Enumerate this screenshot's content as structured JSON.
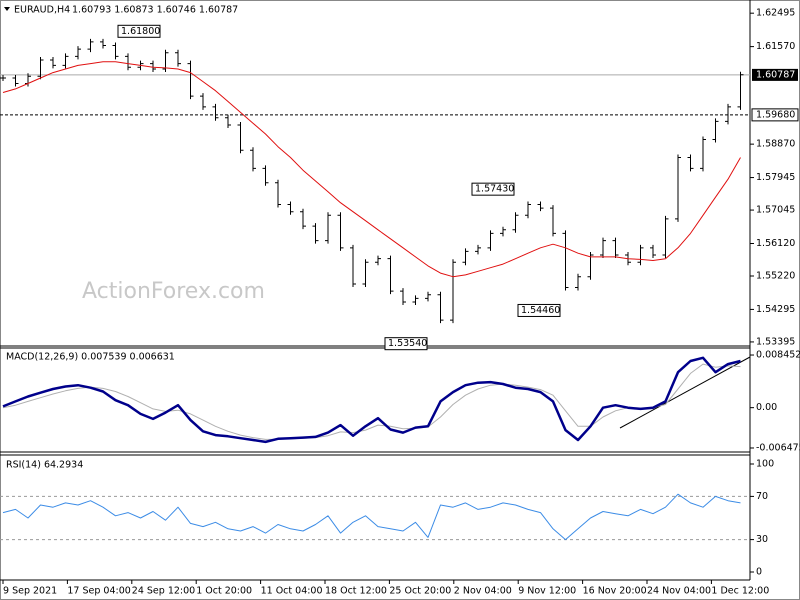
{
  "chart_data": [
    {
      "type": "ohlc-line",
      "symbol": "EURAUD,H4",
      "quote": "1.60793 1.60873 1.60746 1.60787",
      "watermark": "ActionForex.com",
      "x_labels": [
        "9 Sep 2021",
        "17 Sep 04:00",
        "24 Sep 12:00",
        "1 Oct 20:00",
        "11 Oct 04:00",
        "18 Oct 12:00",
        "25 Oct 20:00",
        "2 Nov 04:00",
        "9 Nov 12:00",
        "16 Nov 20:00",
        "24 Nov 04:00",
        "1 Dec 12:00"
      ],
      "ylim": [
        1.5331,
        1.6286
      ],
      "yticks": [
        1.62495,
        {
          "value": 1.6157,
          "label": "1.61570"
        },
        {
          "value": 1.5887,
          "label": "1.58870"
        },
        1.57945,
        1.57045,
        {
          "value": 1.5612,
          "label": "1.56120"
        },
        {
          "value": 1.5522,
          "label": "1.55220"
        },
        1.54295,
        1.53395
      ],
      "current_price": {
        "value": 1.60787,
        "label": "1.60787"
      },
      "level": {
        "value": 1.5968,
        "label": "1.59680"
      },
      "annotations": [
        {
          "value": 1.618,
          "label": "1.61800"
        },
        {
          "value": 1.5743,
          "label": "1.57430"
        },
        {
          "value": 1.5446,
          "label": "1.54460"
        },
        {
          "value": 1.5354,
          "label": "1.53540"
        }
      ],
      "series": [
        {
          "name": "Close",
          "color": "#000000",
          "values": [
            1.607,
            1.6055,
            1.6075,
            1.612,
            1.6105,
            1.613,
            1.615,
            1.617,
            1.616,
            1.613,
            1.61,
            1.611,
            1.6095,
            1.614,
            1.611,
            1.602,
            1.599,
            1.596,
            1.594,
            1.587,
            1.582,
            1.578,
            1.572,
            1.57,
            1.566,
            1.562,
            1.569,
            1.56,
            1.55,
            1.556,
            1.557,
            1.548,
            1.545,
            1.546,
            1.547,
            1.54,
            1.556,
            1.559,
            1.56,
            1.564,
            1.565,
            1.569,
            1.572,
            1.571,
            1.564,
            1.549,
            1.552,
            1.558,
            1.562,
            1.558,
            1.556,
            1.56,
            1.558,
            1.568,
            1.585,
            1.582,
            1.59,
            1.595,
            1.599,
            1.6079
          ]
        },
        {
          "name": "MA",
          "color": "#e01010",
          "values": [
            1.603,
            1.604,
            1.6055,
            1.607,
            1.6085,
            1.6095,
            1.6105,
            1.611,
            1.6115,
            1.6115,
            1.611,
            1.6105,
            1.61,
            1.6098,
            1.6095,
            1.6085,
            1.606,
            1.6035,
            1.6005,
            1.5975,
            1.5945,
            1.5915,
            1.588,
            1.585,
            1.5815,
            1.5785,
            1.5755,
            1.5725,
            1.57,
            1.5675,
            1.565,
            1.5625,
            1.56,
            1.5575,
            1.555,
            1.553,
            1.552,
            1.5525,
            1.5535,
            1.5545,
            1.5555,
            1.557,
            1.5585,
            1.56,
            1.561,
            1.56,
            1.5585,
            1.5575,
            1.5575,
            1.5575,
            1.557,
            1.5568,
            1.5565,
            1.557,
            1.56,
            1.564,
            1.569,
            1.574,
            1.579,
            1.585
          ]
        }
      ]
    },
    {
      "type": "macd",
      "title": "MACD(12,26,9) 0.007539 0.006631",
      "ylim": [
        -0.00712,
        0.00958
      ],
      "yticks": [
        0.008452,
        {
          "value": 0,
          "label": "0.00"
        },
        -0.006475
      ],
      "series": [
        {
          "name": "MACD",
          "color": "#00008b",
          "values": [
            0.0002,
            0.001,
            0.0018,
            0.0024,
            0.003,
            0.0034,
            0.0036,
            0.0032,
            0.0026,
            0.0012,
            0.0004,
            -0.001,
            -0.0018,
            -0.0008,
            0.0004,
            -0.002,
            -0.0038,
            -0.0044,
            -0.0046,
            -0.0049,
            -0.0052,
            -0.0055,
            -0.005,
            -0.0049,
            -0.0048,
            -0.0047,
            -0.004,
            -0.0028,
            -0.0045,
            -0.003,
            -0.0017,
            -0.0035,
            -0.004,
            -0.0032,
            -0.003,
            0.001,
            0.0025,
            0.0036,
            0.004,
            0.0041,
            0.0038,
            0.0032,
            0.003,
            0.0025,
            0.001,
            -0.0036,
            -0.0052,
            -0.003,
            0.0,
            0.0004,
            0.0,
            -0.0002,
            0.0,
            0.001,
            0.0057,
            0.0075,
            0.008,
            0.0057,
            0.007,
            0.0075
          ]
        },
        {
          "name": "Signal",
          "color": "#b0b0b0",
          "values": [
            0.0,
            0.0004,
            0.001,
            0.0016,
            0.0022,
            0.0027,
            0.0031,
            0.0033,
            0.0031,
            0.0026,
            0.0018,
            0.0008,
            -0.0002,
            -0.0006,
            -0.0004,
            -0.001,
            -0.002,
            -0.003,
            -0.0038,
            -0.0044,
            -0.0048,
            -0.0051,
            -0.0051,
            -0.005,
            -0.0049,
            -0.0048,
            -0.0045,
            -0.0039,
            -0.004,
            -0.0036,
            -0.0028,
            -0.003,
            -0.0034,
            -0.0033,
            -0.0031,
            -0.0015,
            0.0005,
            0.002,
            0.003,
            0.0036,
            0.0038,
            0.0036,
            0.0033,
            0.0029,
            0.002,
            -0.0005,
            -0.003,
            -0.003,
            -0.0015,
            -0.0005,
            0.0,
            -0.0001,
            0.0,
            0.0005,
            0.003,
            0.0055,
            0.007,
            0.0065,
            0.0067,
            0.0066
          ]
        }
      ]
    },
    {
      "type": "rsi",
      "title": "RSI(14) 64.2934",
      "ylim": [
        -7.4,
        107.4
      ],
      "yticks": [
        100,
        70,
        30,
        0
      ],
      "levels": [
        70,
        30
      ],
      "series": [
        {
          "name": "RSI",
          "color": "#3c8ce6",
          "values": [
            55,
            58,
            50,
            62,
            60,
            64,
            62,
            66,
            60,
            52,
            55,
            50,
            56,
            48,
            60,
            45,
            42,
            46,
            40,
            38,
            42,
            36,
            44,
            40,
            38,
            44,
            52,
            36,
            46,
            52,
            42,
            40,
            38,
            46,
            32,
            62,
            60,
            64,
            58,
            60,
            64,
            62,
            58,
            55,
            40,
            30,
            40,
            50,
            56,
            54,
            52,
            58,
            54,
            60,
            72,
            64,
            60,
            70,
            66,
            64
          ]
        }
      ]
    }
  ]
}
